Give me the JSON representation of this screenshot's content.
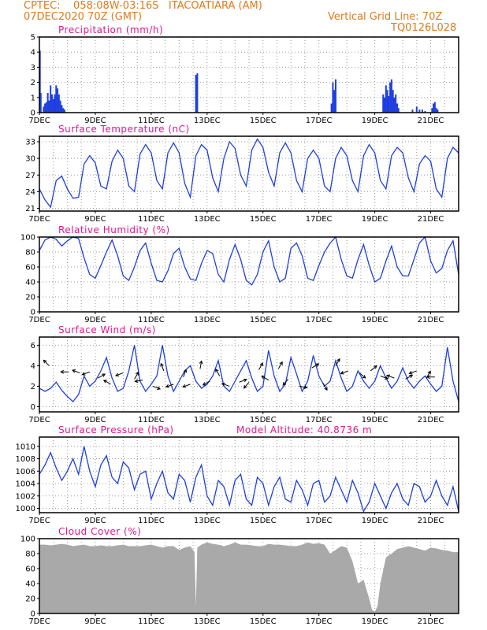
{
  "header": {
    "line1_left": "CPTEC:    058:08W-03:16S   ITACOATIARA (AM)",
    "line2_left": "07DEC2020 70Z (GMT)",
    "line1_right": "Vertical Grid Line: 70Z",
    "line2_right": "TQ0126L028"
  },
  "x_labels": [
    "7DEC",
    "9DEC",
    "11DEC",
    "13DEC",
    "15DEC",
    "17DEC",
    "19DEC",
    "21DEC"
  ],
  "chart_data": [
    {
      "type": "bar",
      "title": "Precipitation (mm/h)",
      "ylim": [
        0,
        5
      ],
      "yticks": [
        0,
        1,
        2,
        3,
        4,
        5
      ],
      "xlim": [
        7,
        22
      ],
      "x": [
        7.02,
        7.05,
        7.15,
        7.2,
        7.25,
        7.3,
        7.35,
        7.4,
        7.45,
        7.5,
        7.55,
        7.6,
        7.65,
        7.7,
        7.75,
        7.8,
        7.85,
        7.9,
        12.6,
        12.65,
        17.45,
        17.5,
        17.55,
        17.6,
        19.3,
        19.35,
        19.4,
        19.45,
        19.5,
        19.55,
        19.6,
        19.65,
        19.7,
        19.75,
        19.8,
        19.85,
        20.35,
        20.5,
        20.6,
        20.7,
        20.8,
        21.05,
        21.1,
        21.15,
        21.2,
        21.25
      ],
      "values": [
        4.1,
        1.3,
        0.4,
        0.6,
        0.7,
        1.3,
        0.8,
        1.8,
        1.2,
        0.9,
        1.2,
        1.8,
        1.6,
        1.2,
        0.8,
        0.5,
        0.3,
        0.2,
        2.5,
        2.6,
        0.6,
        2.0,
        1.5,
        2.2,
        1.2,
        1.0,
        1.8,
        1.5,
        1.1,
        2.0,
        2.2,
        1.5,
        1.0,
        1.2,
        0.6,
        0.3,
        0.2,
        0.4,
        0.2,
        0.2,
        0.1,
        0.3,
        0.6,
        0.7,
        0.3,
        0.2
      ]
    },
    {
      "type": "line",
      "title": "Surface Temperature (nC)",
      "ylim": [
        20.5,
        34
      ],
      "yticks": [
        21,
        24,
        27,
        30,
        33
      ],
      "xlim": [
        7,
        22
      ],
      "x": [
        7.0,
        7.2,
        7.4,
        7.6,
        7.8,
        8.0,
        8.2,
        8.4,
        8.6,
        8.8,
        9.0,
        9.2,
        9.4,
        9.6,
        9.8,
        10.0,
        10.2,
        10.4,
        10.6,
        10.8,
        11.0,
        11.2,
        11.4,
        11.6,
        11.8,
        12.0,
        12.2,
        12.4,
        12.6,
        12.8,
        13.0,
        13.2,
        13.4,
        13.6,
        13.8,
        14.0,
        14.2,
        14.4,
        14.6,
        14.8,
        15.0,
        15.2,
        15.4,
        15.6,
        15.8,
        16.0,
        16.2,
        16.4,
        16.6,
        16.8,
        17.0,
        17.2,
        17.4,
        17.6,
        17.8,
        18.0,
        18.2,
        18.4,
        18.6,
        18.8,
        19.0,
        19.2,
        19.4,
        19.6,
        19.8,
        20.0,
        20.2,
        20.4,
        20.6,
        20.8,
        21.0,
        21.2,
        21.4,
        21.6,
        21.8,
        22.0
      ],
      "values": [
        24.5,
        22.5,
        21.2,
        26.0,
        26.8,
        24.5,
        22.8,
        23.0,
        29.0,
        30.5,
        29.2,
        25.0,
        24.5,
        29.5,
        31.5,
        30.0,
        25.0,
        24.0,
        30.8,
        32.5,
        31.0,
        26.0,
        24.5,
        31.0,
        32.8,
        31.0,
        25.5,
        23.0,
        30.5,
        32.5,
        31.5,
        26.5,
        24.0,
        30.0,
        33.0,
        31.8,
        27.0,
        25.0,
        31.5,
        33.5,
        32.0,
        27.5,
        25.0,
        31.0,
        32.8,
        31.0,
        26.0,
        24.0,
        30.0,
        31.5,
        30.0,
        25.0,
        24.0,
        30.0,
        32.0,
        30.5,
        26.0,
        24.0,
        30.5,
        32.5,
        31.0,
        26.0,
        24.5,
        30.5,
        32.0,
        31.0,
        26.5,
        24.0,
        29.0,
        30.5,
        29.5,
        24.5,
        23.0,
        30.0,
        32.0,
        31.0
      ]
    },
    {
      "type": "line",
      "title": "Relative Humidity (%)",
      "ylim": [
        0,
        100
      ],
      "yticks": [
        0,
        20,
        40,
        60,
        80,
        100
      ],
      "xlim": [
        7,
        22
      ],
      "x": [
        7.0,
        7.2,
        7.4,
        7.6,
        7.8,
        8.0,
        8.2,
        8.4,
        8.6,
        8.8,
        9.0,
        9.2,
        9.4,
        9.6,
        9.8,
        10.0,
        10.2,
        10.4,
        10.6,
        10.8,
        11.0,
        11.2,
        11.4,
        11.6,
        11.8,
        12.0,
        12.2,
        12.4,
        12.6,
        12.8,
        13.0,
        13.2,
        13.4,
        13.6,
        13.8,
        14.0,
        14.2,
        14.4,
        14.6,
        14.8,
        15.0,
        15.2,
        15.4,
        15.6,
        15.8,
        16.0,
        16.2,
        16.4,
        16.6,
        16.8,
        17.0,
        17.2,
        17.4,
        17.6,
        17.8,
        18.0,
        18.2,
        18.4,
        18.6,
        18.8,
        19.0,
        19.2,
        19.4,
        19.6,
        19.8,
        20.0,
        20.2,
        20.4,
        20.6,
        20.8,
        21.0,
        21.2,
        21.4,
        21.6,
        21.8,
        22.0
      ],
      "values": [
        82,
        96,
        100,
        97,
        88,
        95,
        100,
        98,
        72,
        50,
        45,
        62,
        80,
        96,
        75,
        48,
        42,
        60,
        82,
        92,
        65,
        42,
        40,
        55,
        78,
        85,
        60,
        44,
        42,
        65,
        82,
        78,
        50,
        40,
        70,
        90,
        70,
        42,
        36,
        50,
        80,
        95,
        60,
        40,
        45,
        85,
        92,
        75,
        45,
        42,
        62,
        80,
        92,
        100,
        70,
        48,
        45,
        70,
        90,
        62,
        40,
        45,
        68,
        88,
        60,
        48,
        48,
        70,
        92,
        100,
        68,
        52,
        58,
        82,
        95,
        50
      ]
    },
    {
      "type": "line",
      "title": "Surface Wind (m/s)",
      "ylim": [
        -0.5,
        6.8
      ],
      "yticks": [
        0,
        2,
        4,
        6
      ],
      "xlim": [
        7,
        22
      ],
      "x": [
        7.0,
        7.2,
        7.4,
        7.6,
        7.8,
        8.0,
        8.2,
        8.4,
        8.6,
        8.8,
        9.0,
        9.2,
        9.4,
        9.6,
        9.8,
        10.0,
        10.2,
        10.4,
        10.6,
        10.8,
        11.0,
        11.2,
        11.4,
        11.6,
        11.8,
        12.0,
        12.2,
        12.4,
        12.6,
        12.8,
        13.0,
        13.2,
        13.4,
        13.6,
        13.8,
        14.0,
        14.2,
        14.4,
        14.6,
        14.8,
        15.0,
        15.2,
        15.4,
        15.6,
        15.8,
        16.0,
        16.2,
        16.4,
        16.6,
        16.8,
        17.0,
        17.2,
        17.4,
        17.6,
        17.8,
        18.0,
        18.2,
        18.4,
        18.6,
        18.8,
        19.0,
        19.2,
        19.4,
        19.6,
        19.8,
        20.0,
        20.2,
        20.4,
        20.6,
        20.8,
        21.0,
        21.2,
        21.4,
        21.6,
        21.8,
        22.0
      ],
      "values": [
        1.8,
        1.5,
        1.8,
        2.4,
        1.6,
        1.0,
        0.5,
        1.2,
        3.0,
        2.0,
        2.5,
        3.5,
        4.8,
        2.8,
        1.5,
        1.8,
        3.5,
        6.0,
        2.5,
        1.5,
        2.2,
        3.0,
        6.0,
        3.0,
        1.5,
        2.5,
        3.5,
        4.0,
        2.5,
        1.8,
        2.2,
        3.0,
        4.5,
        2.0,
        1.5,
        2.5,
        3.5,
        4.5,
        2.8,
        1.5,
        2.0,
        5.5,
        3.0,
        1.5,
        2.2,
        4.8,
        3.2,
        1.5,
        2.5,
        5.0,
        3.0,
        2.0,
        2.5,
        4.5,
        2.8,
        1.5,
        2.0,
        3.5,
        2.5,
        1.8,
        2.5,
        4.0,
        2.8,
        1.8,
        2.5,
        3.8,
        2.5,
        1.8,
        2.5,
        3.0,
        2.2,
        1.5,
        2.0,
        5.8,
        2.5,
        0.5
      ]
    },
    {
      "type": "line",
      "title": "Surface Pressure (hPa)",
      "annotation": "Model Altitude: 40.8736 m",
      "ylim": [
        999.3,
        1011.5
      ],
      "yticks": [
        1000,
        1002,
        1004,
        1006,
        1008,
        1010
      ],
      "xlim": [
        7,
        22
      ],
      "x": [
        7.0,
        7.2,
        7.4,
        7.6,
        7.8,
        8.0,
        8.2,
        8.4,
        8.6,
        8.8,
        9.0,
        9.2,
        9.4,
        9.6,
        9.8,
        10.0,
        10.2,
        10.4,
        10.6,
        10.8,
        11.0,
        11.2,
        11.4,
        11.6,
        11.8,
        12.0,
        12.2,
        12.4,
        12.6,
        12.8,
        13.0,
        13.2,
        13.4,
        13.6,
        13.8,
        14.0,
        14.2,
        14.4,
        14.6,
        14.8,
        15.0,
        15.2,
        15.4,
        15.6,
        15.8,
        16.0,
        16.2,
        16.4,
        16.6,
        16.8,
        17.0,
        17.2,
        17.4,
        17.6,
        17.8,
        18.0,
        18.2,
        18.4,
        18.6,
        18.8,
        19.0,
        19.2,
        19.4,
        19.6,
        19.8,
        20.0,
        20.2,
        20.4,
        20.6,
        20.8,
        21.0,
        21.2,
        21.4,
        21.6,
        21.8,
        22.0
      ],
      "values": [
        1005.5,
        1007.0,
        1009.0,
        1006.5,
        1004.5,
        1006.0,
        1008.0,
        1005.5,
        1010.0,
        1006.0,
        1003.5,
        1007.0,
        1008.5,
        1005.0,
        1004.0,
        1007.5,
        1006.5,
        1003.0,
        1005.5,
        1006.0,
        1001.5,
        1004.0,
        1006.0,
        1002.5,
        1001.5,
        1005.5,
        1004.5,
        1001.0,
        1005.0,
        1007.0,
        1002.0,
        1000.5,
        1004.5,
        1003.5,
        1000.5,
        1004.5,
        1005.5,
        1001.5,
        1000.5,
        1005.0,
        1004.0,
        1000.5,
        1003.5,
        1005.0,
        1001.5,
        1001.0,
        1004.5,
        1003.0,
        1000.5,
        1004.0,
        1004.5,
        1001.0,
        1002.0,
        1005.0,
        1003.0,
        1001.0,
        1004.5,
        1002.5,
        999.5,
        1001.0,
        1004.0,
        1002.0,
        1000.0,
        1002.5,
        1004.0,
        1001.5,
        1000.5,
        1004.0,
        1003.5,
        1001.0,
        1002.0,
        1004.5,
        1002.0,
        1000.5,
        1003.5,
        999.5
      ]
    },
    {
      "type": "area",
      "title": "Cloud Cover (%)",
      "ylim": [
        0,
        100
      ],
      "yticks": [
        0,
        20,
        40,
        60,
        80,
        100
      ],
      "xlim": [
        7,
        22
      ],
      "x": [
        7.0,
        7.2,
        7.4,
        7.6,
        7.8,
        8.0,
        8.2,
        8.4,
        8.6,
        8.8,
        9.0,
        9.2,
        9.4,
        9.6,
        9.8,
        10.0,
        10.2,
        10.4,
        10.6,
        10.8,
        11.0,
        11.2,
        11.4,
        11.6,
        11.8,
        12.0,
        12.2,
        12.4,
        12.55,
        12.6,
        12.65,
        12.8,
        13.0,
        13.2,
        13.4,
        13.6,
        13.8,
        14.0,
        14.2,
        14.4,
        14.6,
        14.8,
        15.0,
        15.2,
        15.4,
        15.6,
        15.8,
        16.0,
        16.2,
        16.4,
        16.6,
        16.8,
        17.0,
        17.2,
        17.4,
        17.6,
        17.8,
        18.0,
        18.2,
        18.4,
        18.6,
        18.8,
        18.9,
        19.0,
        19.1,
        19.2,
        19.4,
        19.6,
        19.8,
        20.0,
        20.2,
        20.4,
        20.6,
        20.8,
        21.0,
        21.2,
        21.4,
        21.6,
        21.8,
        22.0
      ],
      "values": [
        92,
        92,
        91,
        92,
        93,
        92,
        90,
        91,
        92,
        90,
        90,
        91,
        90,
        90,
        91,
        92,
        90,
        90,
        90,
        91,
        92,
        90,
        88,
        90,
        90,
        85,
        88,
        90,
        82,
        10,
        88,
        92,
        95,
        93,
        92,
        90,
        92,
        95,
        92,
        92,
        91,
        90,
        90,
        93,
        92,
        92,
        91,
        90,
        90,
        92,
        95,
        93,
        94,
        92,
        80,
        85,
        90,
        88,
        70,
        40,
        45,
        20,
        5,
        2,
        10,
        40,
        75,
        80,
        86,
        88,
        90,
        88,
        86,
        84,
        88,
        87,
        85,
        84,
        82,
        82
      ]
    }
  ],
  "wind_vectors": {
    "x": [
      7.35,
      8.05,
      8.45,
      8.8,
      9.1,
      9.55,
      10.0,
      10.4,
      10.7,
      11.05,
      11.45,
      11.8,
      12.15,
      12.4,
      12.75,
      13.1,
      13.45,
      13.8,
      14.15,
      14.5,
      14.85,
      15.2,
      15.55,
      15.9,
      16.3,
      16.75,
      17.15,
      17.6,
      18.05,
      18.45,
      18.85,
      19.2,
      19.7,
      20.1,
      20.5,
      20.85,
      21.15
    ],
    "y": [
      4.0,
      3.4,
      3.3,
      3.4,
      2.8,
      2.2,
      3.3,
      2.7,
      2.6,
      2.0,
      3.5,
      2.2,
      2.9,
      2.2,
      3.7,
      2.5,
      3.0,
      2.0,
      2.4,
      2.4,
      3.6,
      2.6,
      3.7,
      2.7,
      2.0,
      3.8,
      2.3,
      4.0,
      3.5,
      3.3,
      3.5,
      3.0,
      2.8,
      2.7,
      3.5,
      2.8,
      2.9
    ]
  }
}
